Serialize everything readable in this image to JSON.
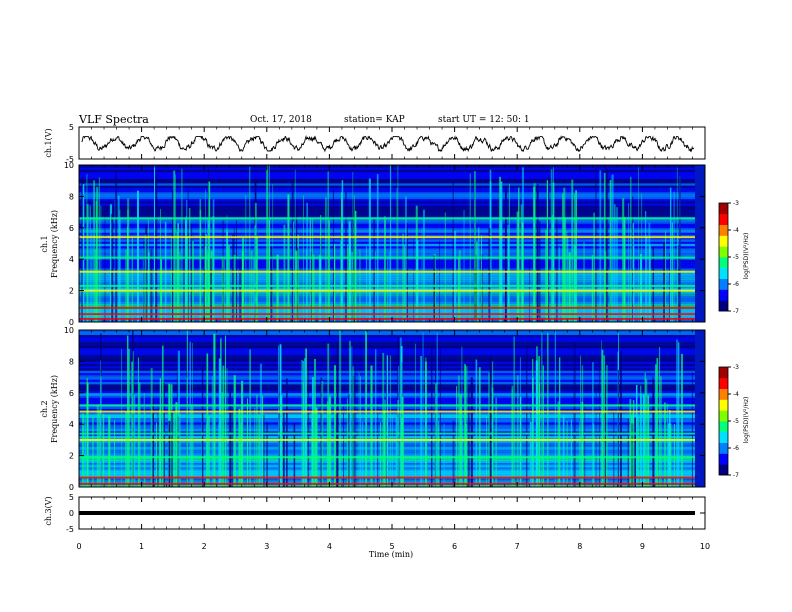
{
  "header": {
    "title": "VLF Spectra",
    "date": "Oct. 17, 2018",
    "station": "station= KAP",
    "start_ut": "start  UT =   12: 50: 1"
  },
  "colors": {
    "colormap": [
      "#000080",
      "#0000ff",
      "#0080ff",
      "#00e0ff",
      "#00ff80",
      "#80ff00",
      "#ffff00",
      "#ff8000",
      "#ff0000",
      "#a00000"
    ],
    "trace": "#000000"
  },
  "chart_data": [
    {
      "type": "line",
      "name": "ch1-waveform",
      "ylabel": "ch.1(V)",
      "ylim": [
        -5,
        5
      ],
      "yticks": [
        "5",
        "-5"
      ],
      "xlim": [
        0,
        10
      ],
      "description_values": "waveform oscillating roughly between -2 and 2 V",
      "y_range_observed": [
        -2.5,
        2.0
      ]
    },
    {
      "type": "heatmap",
      "name": "ch1-spectrogram",
      "ylabel_line1": "ch.1",
      "ylabel_line2": "Frequency  (kHz)",
      "ylim": [
        0,
        10
      ],
      "yticks": [
        "0",
        "2",
        "4",
        "6",
        "8",
        "10"
      ],
      "xlim": [
        0,
        10
      ],
      "colorbar": {
        "label": "log(PSD)(V²/Hz)",
        "range": [
          -7,
          -3
        ],
        "ticks": [
          "-3",
          "-4",
          "-5",
          "-6",
          "-7"
        ]
      },
      "bands_khz": [
        0.2,
        0.5,
        0.9,
        2.0,
        2.3,
        3.2,
        4.1,
        5.4,
        6.6
      ]
    },
    {
      "type": "heatmap",
      "name": "ch2-spectrogram",
      "ylabel_line1": "ch.2",
      "ylabel_line2": "Frequency  (kHz)",
      "ylim": [
        0,
        10
      ],
      "yticks": [
        "0",
        "2",
        "4",
        "6",
        "8",
        "10"
      ],
      "xlim": [
        0,
        10
      ],
      "colorbar": {
        "label": "log(PSD)(V²/Hz)",
        "range": [
          -7,
          -3
        ],
        "ticks": [
          "-3",
          "-4",
          "-5",
          "-6",
          "-7"
        ]
      },
      "bands_khz": [
        0.2,
        0.6,
        1.9,
        3.0,
        3.4,
        4.8,
        5.2
      ]
    },
    {
      "type": "line",
      "name": "ch3-waveform",
      "ylabel": "ch.3(V)",
      "ylim": [
        -5,
        5
      ],
      "yticks": [
        "5",
        "0",
        "-5"
      ],
      "xlim": [
        0,
        10
      ],
      "constant_value": 0,
      "xlabel": "Time  (min)",
      "xticks": [
        "0",
        "1",
        "2",
        "3",
        "4",
        "5",
        "6",
        "7",
        "8",
        "9",
        "10"
      ]
    }
  ]
}
